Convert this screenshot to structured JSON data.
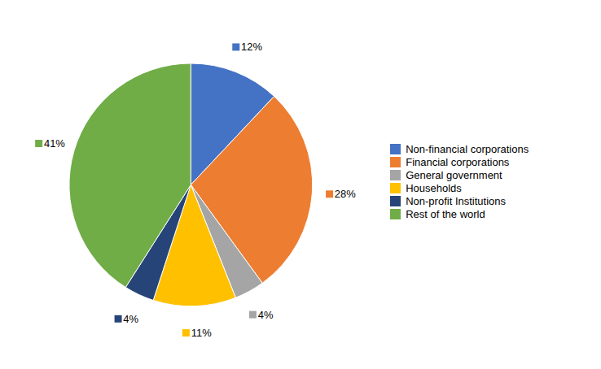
{
  "chart_data": {
    "type": "pie",
    "categories": [
      "Non-financial corporations",
      "Financial corporations",
      "General government",
      "Households",
      "Non-profit Institutions",
      "Rest of the world"
    ],
    "values": [
      12,
      28,
      4,
      11,
      4,
      41
    ],
    "value_labels": [
      "12%",
      "28%",
      "4%",
      "11%",
      "4%",
      "41%"
    ],
    "colors": [
      "#4472C4",
      "#ED7D31",
      "#A5A5A5",
      "#FFC000",
      "#264478",
      "#70AD47"
    ],
    "data_labels": true,
    "legend": "right"
  }
}
